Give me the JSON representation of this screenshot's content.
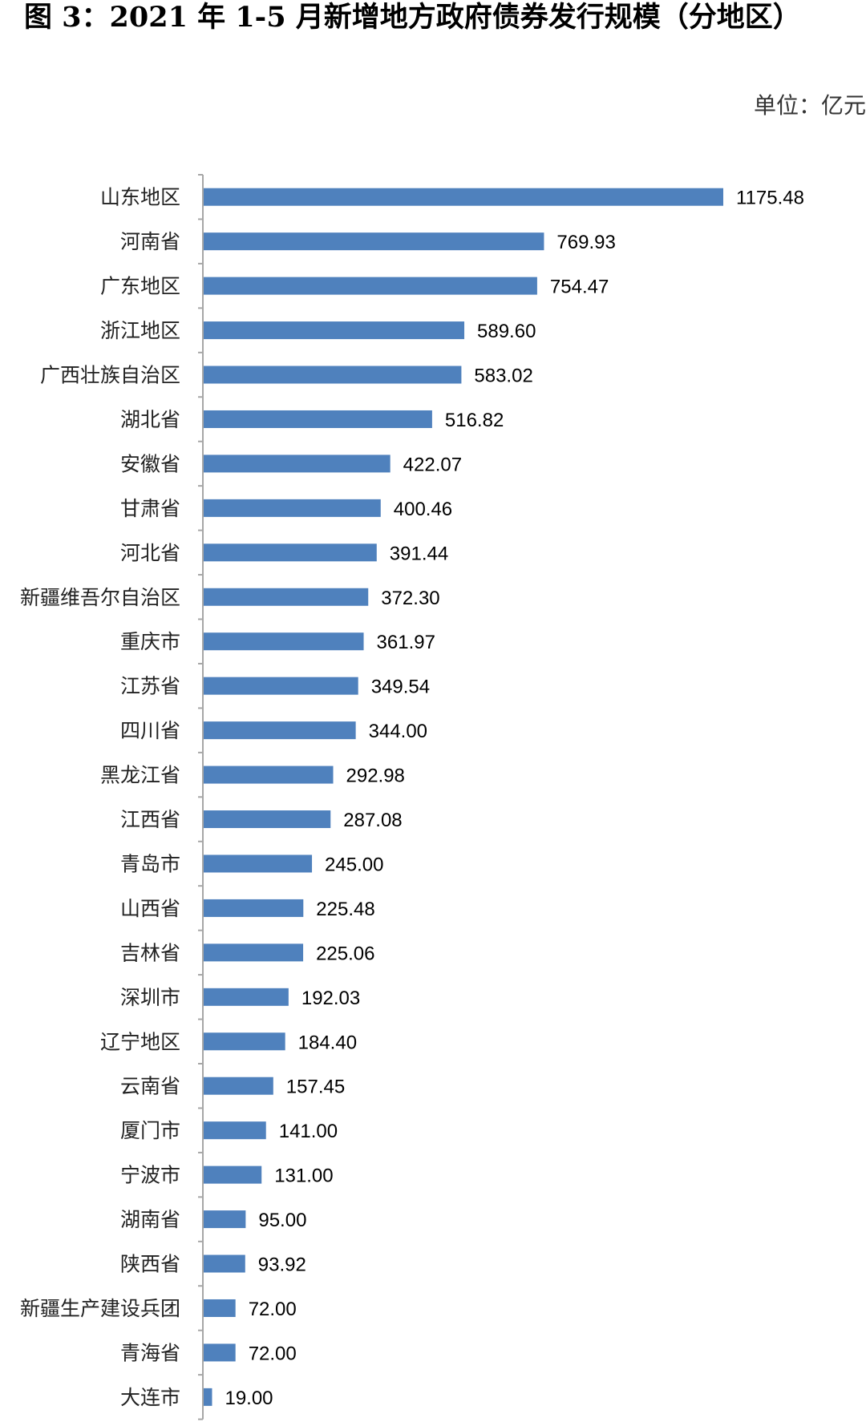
{
  "chart_data": {
    "type": "bar",
    "orientation": "horizontal",
    "title": "图 3：2021 年 1-5 月新增地方政府债券发行规模（分地区）",
    "unit": "单位：亿元",
    "categories": [
      "山东地区",
      "河南省",
      "广东地区",
      "浙江地区",
      "广西壮族自治区",
      "湖北省",
      "安徽省",
      "甘肃省",
      "河北省",
      "新疆维吾尔自治区",
      "重庆市",
      "江苏省",
      "四川省",
      "黑龙江省",
      "江西省",
      "青岛市",
      "山西省",
      "吉林省",
      "深圳市",
      "辽宁地区",
      "云南省",
      "厦门市",
      "宁波市",
      "湖南省",
      "陕西省",
      "新疆生产建设兵团",
      "青海省",
      "大连市"
    ],
    "values": [
      1175.48,
      769.93,
      754.47,
      589.6,
      583.02,
      516.82,
      422.07,
      400.46,
      391.44,
      372.3,
      361.97,
      349.54,
      344.0,
      292.98,
      287.08,
      245.0,
      225.48,
      225.06,
      192.03,
      184.4,
      157.45,
      141.0,
      131.0,
      95.0,
      93.92,
      72.0,
      72.0,
      19.0
    ],
    "value_labels": [
      "1175.48",
      "769.93",
      "754.47",
      "589.60",
      "583.02",
      "516.82",
      "422.07",
      "400.46",
      "391.44",
      "372.30",
      "361.97",
      "349.54",
      "344.00",
      "292.98",
      "287.08",
      "245.00",
      "225.48",
      "225.06",
      "192.03",
      "184.40",
      "157.45",
      "141.00",
      "131.00",
      "95.00",
      "93.92",
      "72.00",
      "72.00",
      "19.00"
    ],
    "bar_color": "#4f81bd",
    "grid": false,
    "legend": "none",
    "xlim": [
      0,
      1200
    ]
  }
}
